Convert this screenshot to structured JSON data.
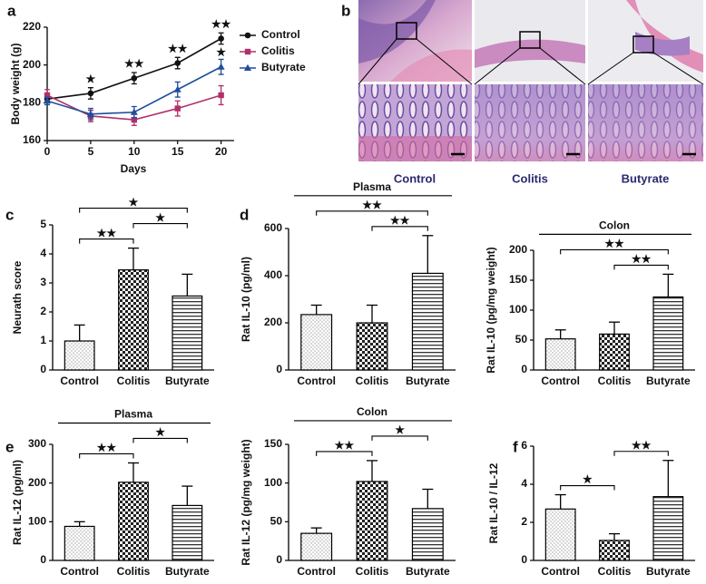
{
  "chart_data": [
    {
      "type": "line",
      "panel": "a",
      "xlabel": "Days",
      "ylabel": "Body weight (g)",
      "x": [
        0,
        5,
        10,
        15,
        20
      ],
      "xlim": [
        0,
        21.5
      ],
      "xticks": [
        0,
        5,
        10,
        15,
        20
      ],
      "ylim": [
        160,
        220
      ],
      "yticks": [
        160,
        180,
        200,
        220
      ],
      "legend": "upper right",
      "series": [
        {
          "name": "Control",
          "color": "#111111",
          "marker": "circle",
          "values": [
            182,
            185,
            193,
            201,
            214
          ],
          "errors": [
            2,
            3,
            3,
            3,
            3
          ]
        },
        {
          "name": "Colitis",
          "color": "#b0306a",
          "marker": "square",
          "values": [
            184,
            173,
            171,
            177,
            184
          ],
          "errors": [
            3,
            3,
            3,
            4,
            5
          ]
        },
        {
          "name": "Butyrate",
          "color": "#1f4e9c",
          "marker": "triangle",
          "values": [
            181,
            174,
            175,
            187,
            199
          ],
          "errors": [
            2,
            3,
            3,
            4,
            4
          ]
        }
      ],
      "annotations": [
        {
          "x": 5,
          "text": "★"
        },
        {
          "x": 10,
          "text": "★★"
        },
        {
          "x": 15,
          "text": "★★"
        },
        {
          "x": 20,
          "text": "★★"
        },
        {
          "x": 20,
          "series": 2,
          "text": "★",
          "color": "#1f4e9c"
        }
      ]
    },
    {
      "type": "bar",
      "panel": "c",
      "ylabel": "Neurath score",
      "categories": [
        "Control",
        "Colitis",
        "Butyrate"
      ],
      "values": [
        1.0,
        3.45,
        2.55
      ],
      "errors": [
        0.55,
        0.75,
        0.75
      ],
      "patterns": [
        "dots",
        "checks",
        "hlines"
      ],
      "ylim": [
        0,
        5
      ],
      "yticks": [
        0,
        1,
        2,
        3,
        4,
        5
      ],
      "brackets": [
        {
          "from": 0,
          "to": 1,
          "text": "★★"
        },
        {
          "from": 1,
          "to": 2,
          "text": "★"
        },
        {
          "from": 0,
          "to": 2,
          "text": "★"
        }
      ]
    },
    {
      "type": "bar",
      "panel": "d",
      "title": "Plasma",
      "ylabel": "Rat IL-10 (pg/ml)",
      "categories": [
        "Control",
        "Colitis",
        "Butyrate"
      ],
      "values": [
        235,
        200,
        410
      ],
      "errors": [
        40,
        75,
        160
      ],
      "patterns": [
        "dots",
        "checks",
        "hlines"
      ],
      "ylim": [
        0,
        600
      ],
      "yticks": [
        0,
        200,
        400,
        600
      ],
      "brackets": [
        {
          "from": 1,
          "to": 2,
          "text": "★★"
        },
        {
          "from": 0,
          "to": 2,
          "text": "★★"
        }
      ]
    },
    {
      "type": "bar",
      "title": "Colon",
      "ylabel": "Rat IL-10 (pg/mg weight)",
      "categories": [
        "Control",
        "Colitis",
        "Butyrate"
      ],
      "values": [
        52,
        60,
        122
      ],
      "errors": [
        15,
        20,
        38
      ],
      "patterns": [
        "dots",
        "checks",
        "hlines"
      ],
      "ylim": [
        0,
        200
      ],
      "yticks": [
        0,
        50,
        100,
        150,
        200
      ],
      "brackets": [
        {
          "from": 1,
          "to": 2,
          "text": "★★"
        },
        {
          "from": 0,
          "to": 2,
          "text": "★★"
        }
      ]
    },
    {
      "type": "bar",
      "panel": "e",
      "title": "Plasma",
      "ylabel": "Rat IL-12 (pg/ml)",
      "categories": [
        "Control",
        "Colitis",
        "Butyrate"
      ],
      "values": [
        88,
        202,
        142
      ],
      "errors": [
        12,
        50,
        50
      ],
      "patterns": [
        "dots",
        "checks",
        "hlines"
      ],
      "ylim": [
        0,
        300
      ],
      "yticks": [
        0,
        100,
        200,
        300
      ],
      "brackets": [
        {
          "from": 0,
          "to": 1,
          "text": "★★"
        },
        {
          "from": 1,
          "to": 2,
          "text": "★"
        }
      ]
    },
    {
      "type": "bar",
      "title": "Colon",
      "ylabel": "Rat IL-12 (pg/mg weight)",
      "categories": [
        "Control",
        "Colitis",
        "Butyrate"
      ],
      "values": [
        35,
        102,
        67
      ],
      "errors": [
        7,
        27,
        25
      ],
      "patterns": [
        "dots",
        "checks",
        "hlines"
      ],
      "ylim": [
        0,
        150
      ],
      "yticks": [
        0,
        50,
        100,
        150
      ],
      "brackets": [
        {
          "from": 0,
          "to": 1,
          "text": "★★"
        },
        {
          "from": 1,
          "to": 2,
          "text": "★"
        }
      ]
    },
    {
      "type": "bar",
      "panel": "f",
      "ylabel": "Rat IL-10 / IL-12",
      "categories": [
        "Control",
        "Colitis",
        "Butyrate"
      ],
      "values": [
        2.7,
        1.05,
        3.35
      ],
      "errors": [
        0.75,
        0.35,
        1.9
      ],
      "patterns": [
        "dots",
        "checks",
        "hlines"
      ],
      "ylim": [
        0,
        6
      ],
      "yticks": [
        0,
        2,
        4,
        6
      ],
      "brackets": [
        {
          "from": 0,
          "to": 1,
          "text": "★"
        },
        {
          "from": 1,
          "to": 2,
          "text": "★★"
        }
      ]
    }
  ],
  "histology": {
    "panel": "b",
    "labels": [
      "Control",
      "Colitis",
      "Butyrate"
    ]
  }
}
